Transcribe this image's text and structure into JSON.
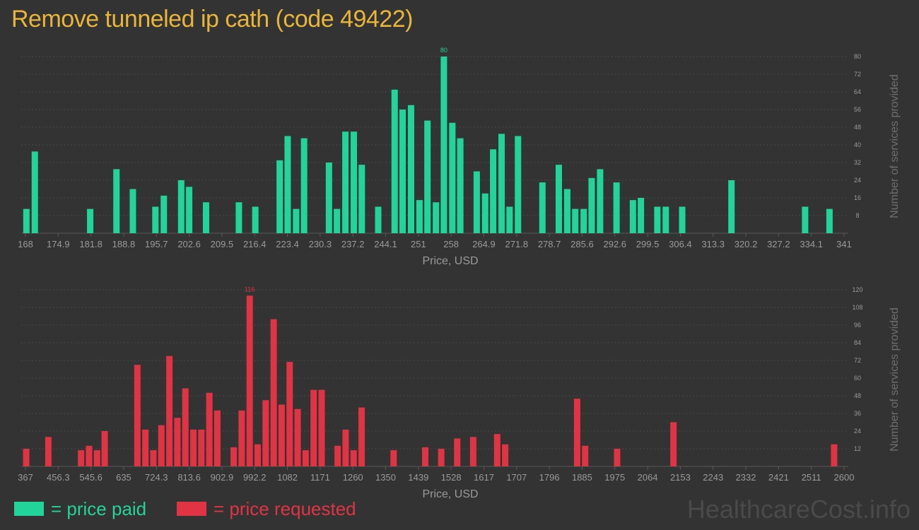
{
  "title": "Remove tunneled ip cath (code 49422)",
  "colors": {
    "background": "#333333",
    "title": "#e8b53a",
    "paid": "#22d49a",
    "requested": "#e03344",
    "axis_text": "#9a9a9a",
    "grid": "#4a4a4a"
  },
  "legend": {
    "paid_label": "= price paid",
    "requested_label": "= price requested"
  },
  "watermark": "HealthcareCost.info",
  "chart_data": [
    {
      "type": "bar",
      "name": "price paid",
      "xlabel": "Price, USD",
      "ylabel": "Number of services provided",
      "x_ticks": [
        "168",
        "174.9",
        "181.8",
        "188.8",
        "195.7",
        "202.6",
        "209.5",
        "216.4",
        "223.4",
        "230.3",
        "237.2",
        "244.1",
        "251",
        "258",
        "264.9",
        "271.8",
        "278.7",
        "285.6",
        "292.6",
        "299.5",
        "306.4",
        "313.3",
        "320.2",
        "327.2",
        "334.1",
        "341"
      ],
      "xlim": [
        168,
        341
      ],
      "y_ticks": [
        8,
        16,
        24,
        32,
        40,
        48,
        56,
        64,
        72,
        80
      ],
      "ylim": [
        0,
        80
      ],
      "max_label": "80",
      "bars": [
        {
          "x": 168.2,
          "y": 11
        },
        {
          "x": 170.0,
          "y": 37
        },
        {
          "x": 181.8,
          "y": 11
        },
        {
          "x": 187.4,
          "y": 29
        },
        {
          "x": 190.9,
          "y": 20
        },
        {
          "x": 195.7,
          "y": 12
        },
        {
          "x": 197.5,
          "y": 17
        },
        {
          "x": 201.2,
          "y": 24
        },
        {
          "x": 202.9,
          "y": 21
        },
        {
          "x": 206.5,
          "y": 14
        },
        {
          "x": 213.5,
          "y": 14
        },
        {
          "x": 217.0,
          "y": 12
        },
        {
          "x": 222.2,
          "y": 33
        },
        {
          "x": 223.9,
          "y": 44
        },
        {
          "x": 225.7,
          "y": 11
        },
        {
          "x": 227.4,
          "y": 43
        },
        {
          "x": 232.7,
          "y": 32
        },
        {
          "x": 234.4,
          "y": 11
        },
        {
          "x": 236.2,
          "y": 46
        },
        {
          "x": 238.0,
          "y": 46
        },
        {
          "x": 239.7,
          "y": 31
        },
        {
          "x": 243.2,
          "y": 12
        },
        {
          "x": 246.7,
          "y": 65
        },
        {
          "x": 248.4,
          "y": 56
        },
        {
          "x": 250.2,
          "y": 58
        },
        {
          "x": 252.0,
          "y": 15
        },
        {
          "x": 253.7,
          "y": 51
        },
        {
          "x": 255.5,
          "y": 14
        },
        {
          "x": 257.2,
          "y": 80
        },
        {
          "x": 259.0,
          "y": 50
        },
        {
          "x": 260.7,
          "y": 43
        },
        {
          "x": 264.2,
          "y": 28
        },
        {
          "x": 266.0,
          "y": 18
        },
        {
          "x": 267.7,
          "y": 38
        },
        {
          "x": 269.5,
          "y": 45
        },
        {
          "x": 271.2,
          "y": 12
        },
        {
          "x": 273.0,
          "y": 44
        },
        {
          "x": 278.2,
          "y": 23
        },
        {
          "x": 281.7,
          "y": 31
        },
        {
          "x": 283.5,
          "y": 20
        },
        {
          "x": 285.2,
          "y": 11
        },
        {
          "x": 287.0,
          "y": 11
        },
        {
          "x": 288.7,
          "y": 25
        },
        {
          "x": 290.5,
          "y": 29
        },
        {
          "x": 294.0,
          "y": 23
        },
        {
          "x": 297.5,
          "y": 15
        },
        {
          "x": 299.2,
          "y": 16
        },
        {
          "x": 302.7,
          "y": 12
        },
        {
          "x": 304.5,
          "y": 12
        },
        {
          "x": 308.0,
          "y": 12
        },
        {
          "x": 318.5,
          "y": 24
        },
        {
          "x": 334.2,
          "y": 12
        },
        {
          "x": 339.4,
          "y": 11
        }
      ]
    },
    {
      "type": "bar",
      "name": "price requested",
      "xlabel": "Price, USD",
      "ylabel": "Number of services provided",
      "x_ticks": [
        "367",
        "456.3",
        "545.6",
        "635",
        "724.3",
        "813.6",
        "902.9",
        "992.2",
        "1082",
        "1171",
        "1260",
        "1350",
        "1439",
        "1528",
        "1617",
        "1707",
        "1796",
        "1885",
        "1975",
        "2064",
        "2153",
        "2243",
        "2332",
        "2421",
        "2511",
        "2600"
      ],
      "xlim": [
        367,
        2600
      ],
      "y_ticks": [
        12,
        24,
        36,
        48,
        60,
        72,
        84,
        96,
        108,
        120
      ],
      "ylim": [
        0,
        120
      ],
      "max_label": "116",
      "bars": [
        {
          "x": 369,
          "y": 12
        },
        {
          "x": 430,
          "y": 20
        },
        {
          "x": 520,
          "y": 11
        },
        {
          "x": 542,
          "y": 14
        },
        {
          "x": 564,
          "y": 11
        },
        {
          "x": 585,
          "y": 24
        },
        {
          "x": 675,
          "y": 69
        },
        {
          "x": 697,
          "y": 25
        },
        {
          "x": 719,
          "y": 11
        },
        {
          "x": 741,
          "y": 28
        },
        {
          "x": 763,
          "y": 75
        },
        {
          "x": 785,
          "y": 33
        },
        {
          "x": 807,
          "y": 53
        },
        {
          "x": 829,
          "y": 25
        },
        {
          "x": 851,
          "y": 25
        },
        {
          "x": 873,
          "y": 50
        },
        {
          "x": 895,
          "y": 38
        },
        {
          "x": 940,
          "y": 13
        },
        {
          "x": 962,
          "y": 38
        },
        {
          "x": 984,
          "y": 116
        },
        {
          "x": 1006,
          "y": 15
        },
        {
          "x": 1028,
          "y": 45
        },
        {
          "x": 1050,
          "y": 100
        },
        {
          "x": 1072,
          "y": 42
        },
        {
          "x": 1094,
          "y": 71
        },
        {
          "x": 1116,
          "y": 39
        },
        {
          "x": 1138,
          "y": 11
        },
        {
          "x": 1160,
          "y": 52
        },
        {
          "x": 1182,
          "y": 52
        },
        {
          "x": 1226,
          "y": 14
        },
        {
          "x": 1248,
          "y": 25
        },
        {
          "x": 1270,
          "y": 11
        },
        {
          "x": 1292,
          "y": 40
        },
        {
          "x": 1380,
          "y": 11
        },
        {
          "x": 1467,
          "y": 13
        },
        {
          "x": 1511,
          "y": 12
        },
        {
          "x": 1555,
          "y": 19
        },
        {
          "x": 1599,
          "y": 20
        },
        {
          "x": 1665,
          "y": 22
        },
        {
          "x": 1687,
          "y": 15
        },
        {
          "x": 1885,
          "y": 46
        },
        {
          "x": 1907,
          "y": 14
        },
        {
          "x": 1995,
          "y": 12
        },
        {
          "x": 2150,
          "y": 30
        },
        {
          "x": 2592,
          "y": 15
        }
      ]
    }
  ]
}
